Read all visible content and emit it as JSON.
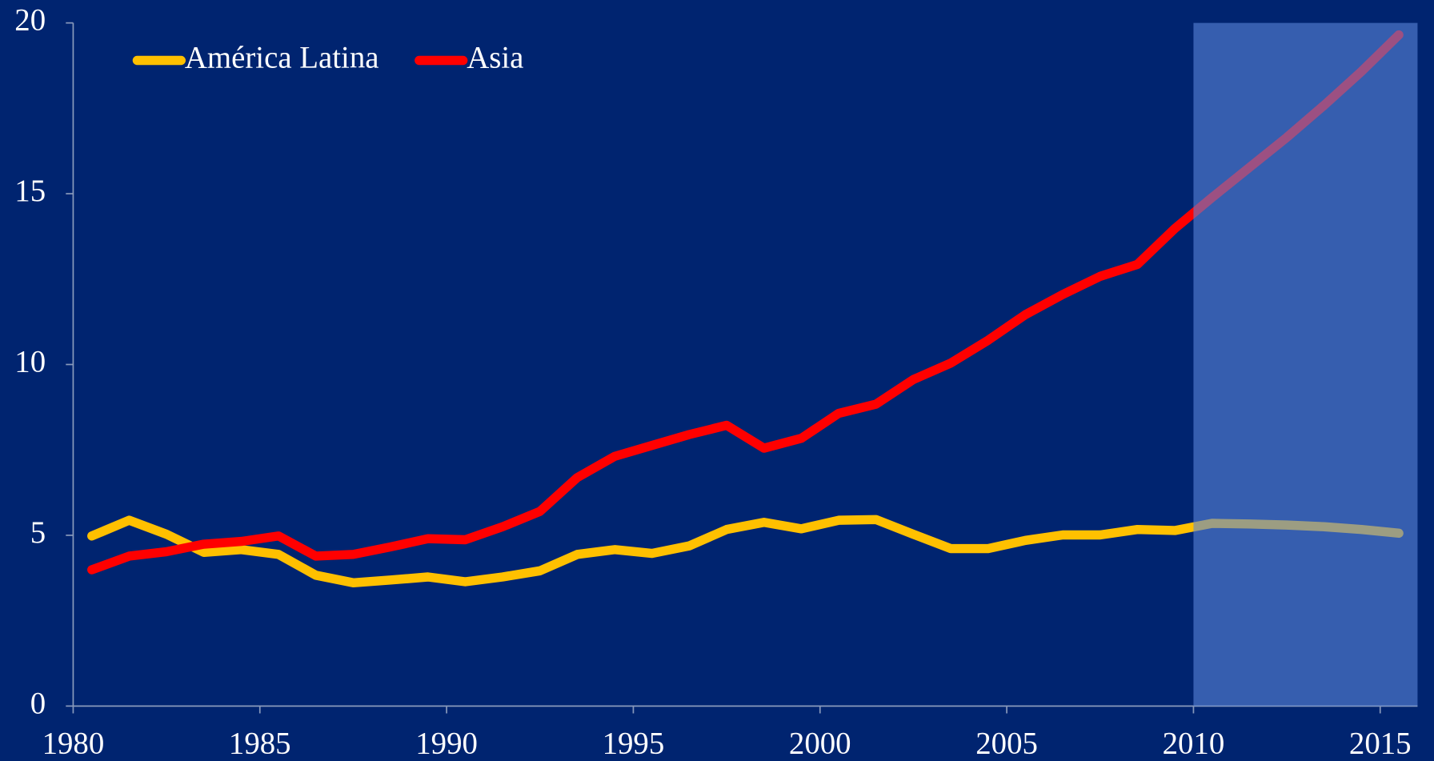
{
  "chart_data": {
    "type": "line",
    "x": [
      1980.5,
      1981.5,
      1982.5,
      1983.5,
      1984.5,
      1985.5,
      1986.5,
      1987.5,
      1988.5,
      1989.5,
      1990.5,
      1991.5,
      1992.5,
      1993.5,
      1994.5,
      1995.5,
      1996.5,
      1997.5,
      1998.5,
      1999.5,
      2000.5,
      2001.5,
      2002.5,
      2003.5,
      2004.5,
      2005.5,
      2006.5,
      2007.5,
      2008.5,
      2009.5,
      2010.5,
      2011.5,
      2012.5,
      2013.5,
      2014.5,
      2015.5
    ],
    "series": [
      {
        "name": "América Latina",
        "color": "#ffc000",
        "values": [
          4.98,
          5.44,
          5.03,
          4.5,
          4.58,
          4.44,
          3.83,
          3.61,
          3.69,
          3.78,
          3.64,
          3.78,
          3.96,
          4.44,
          4.58,
          4.47,
          4.69,
          5.17,
          5.38,
          5.19,
          5.44,
          5.46,
          5.03,
          4.61,
          4.61,
          4.85,
          5.01,
          5.01,
          5.17,
          5.14,
          5.35,
          5.33,
          5.3,
          5.25,
          5.17,
          5.06
        ]
      },
      {
        "name": "Asia",
        "color": "#ff0000",
        "values": [
          3.99,
          4.39,
          4.52,
          4.74,
          4.82,
          4.98,
          4.39,
          4.44,
          4.66,
          4.9,
          4.87,
          5.25,
          5.7,
          6.69,
          7.31,
          7.63,
          7.95,
          8.22,
          7.55,
          7.84,
          8.57,
          8.84,
          9.56,
          10.04,
          10.71,
          11.46,
          12.05,
          12.58,
          12.93,
          13.98,
          14.89,
          15.77,
          16.65,
          17.59,
          18.58,
          19.65
        ]
      }
    ],
    "xlim": [
      1980,
      2016
    ],
    "xticks": [
      1980,
      1985,
      1990,
      1995,
      2000,
      2005,
      2010,
      2015
    ],
    "ylim": [
      0,
      20
    ],
    "yticks": [
      0,
      5,
      10,
      15,
      20
    ],
    "shaded_xrange": [
      2010,
      2016
    ],
    "legend": "top-left"
  }
}
